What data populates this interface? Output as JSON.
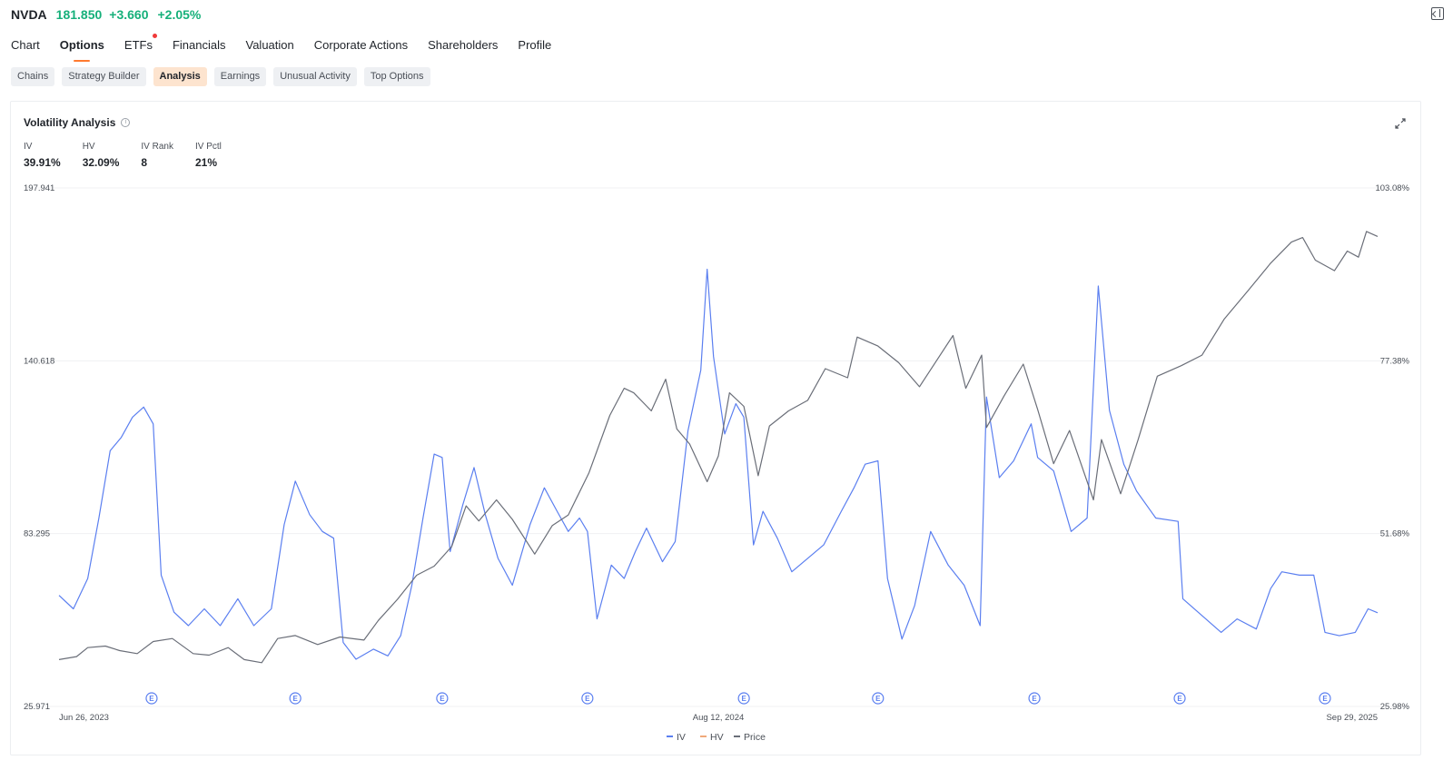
{
  "ticker": {
    "symbol": "NVDA",
    "price": "181.850",
    "change": "+3.660",
    "change_pct": "+2.05%",
    "up_color": "#16b07a"
  },
  "main_tabs": [
    {
      "label": "Chart",
      "active": false,
      "has_dot": false
    },
    {
      "label": "Options",
      "active": true,
      "has_dot": false
    },
    {
      "label": "ETFs",
      "active": false,
      "has_dot": true
    },
    {
      "label": "Financials",
      "active": false,
      "has_dot": false
    },
    {
      "label": "Valuation",
      "active": false,
      "has_dot": false
    },
    {
      "label": "Corporate Actions",
      "active": false,
      "has_dot": false
    },
    {
      "label": "Shareholders",
      "active": false,
      "has_dot": false
    },
    {
      "label": "Profile",
      "active": false,
      "has_dot": false
    }
  ],
  "sub_tabs": [
    {
      "label": "Chains",
      "active": false
    },
    {
      "label": "Strategy Builder",
      "active": false
    },
    {
      "label": "Analysis",
      "active": true
    },
    {
      "label": "Earnings",
      "active": false
    },
    {
      "label": "Unusual Activity",
      "active": false
    },
    {
      "label": "Top Options",
      "active": false
    }
  ],
  "panel": {
    "title": "Volatility Analysis",
    "metrics": [
      {
        "label": "IV",
        "value": "39.91%"
      },
      {
        "label": "HV",
        "value": "32.09%"
      },
      {
        "label": "IV Rank",
        "value": "8"
      },
      {
        "label": "IV Pctl",
        "value": "21%"
      }
    ]
  },
  "chart_data": {
    "type": "line",
    "x_tick_labels": [
      "Jun 26, 2023",
      "Aug 12, 2024",
      "Sep 29, 2025"
    ],
    "x_range": [
      "2023-06-26",
      "2025-09-29"
    ],
    "left_axis": {
      "ticks": [
        "197.941",
        "140.618",
        "83.295",
        "25.971"
      ],
      "range": [
        25.971,
        197.941
      ],
      "series": "Price"
    },
    "right_axis": {
      "ticks": [
        "103.08%",
        "77.38%",
        "51.68%",
        "25.98%"
      ],
      "range": [
        25.98,
        103.08
      ],
      "unit": "%",
      "series": "IV/HV"
    },
    "grid": true,
    "legend_position": "bottom-center",
    "earnings_marker_label": "E",
    "earnings_markers": [
      "2023-08-23",
      "2023-11-21",
      "2024-02-21",
      "2024-05-22",
      "2024-08-28",
      "2024-11-20",
      "2025-02-26",
      "2025-05-28",
      "2025-08-27"
    ],
    "series": [
      {
        "name": "IV",
        "color": "#5b7ff0",
        "visible": true,
        "points": [
          [
            "2023-06-26",
            42.5
          ],
          [
            "2023-07-05",
            40.5
          ],
          [
            "2023-07-14",
            45.0
          ],
          [
            "2023-07-21",
            54.0
          ],
          [
            "2023-07-28",
            64.0
          ],
          [
            "2023-08-04",
            66.0
          ],
          [
            "2023-08-11",
            69.0
          ],
          [
            "2023-08-18",
            70.5
          ],
          [
            "2023-08-24",
            68.0
          ],
          [
            "2023-08-29",
            45.5
          ],
          [
            "2023-09-06",
            40.0
          ],
          [
            "2023-09-15",
            38.0
          ],
          [
            "2023-09-25",
            40.5
          ],
          [
            "2023-10-05",
            38.0
          ],
          [
            "2023-10-16",
            42.0
          ],
          [
            "2023-10-26",
            38.0
          ],
          [
            "2023-11-06",
            40.5
          ],
          [
            "2023-11-14",
            53.0
          ],
          [
            "2023-11-21",
            59.5
          ],
          [
            "2023-11-30",
            54.5
          ],
          [
            "2023-12-08",
            52.0
          ],
          [
            "2023-12-15",
            51.0
          ],
          [
            "2023-12-21",
            35.5
          ],
          [
            "2023-12-29",
            33.0
          ],
          [
            "2024-01-09",
            34.5
          ],
          [
            "2024-01-18",
            33.5
          ],
          [
            "2024-01-26",
            36.5
          ],
          [
            "2024-02-02",
            44.0
          ],
          [
            "2024-02-09",
            54.0
          ],
          [
            "2024-02-16",
            63.5
          ],
          [
            "2024-02-21",
            63.0
          ],
          [
            "2024-02-26",
            49.0
          ],
          [
            "2024-03-05",
            56.0
          ],
          [
            "2024-03-12",
            61.5
          ],
          [
            "2024-03-19",
            54.5
          ],
          [
            "2024-03-27",
            48.0
          ],
          [
            "2024-04-05",
            44.0
          ],
          [
            "2024-04-16",
            53.0
          ],
          [
            "2024-04-25",
            58.5
          ],
          [
            "2024-05-03",
            55.0
          ],
          [
            "2024-05-10",
            52.0
          ],
          [
            "2024-05-17",
            54.0
          ],
          [
            "2024-05-22",
            52.0
          ],
          [
            "2024-05-28",
            39.0
          ],
          [
            "2024-06-06",
            47.0
          ],
          [
            "2024-06-14",
            45.0
          ],
          [
            "2024-06-21",
            49.0
          ],
          [
            "2024-06-28",
            52.5
          ],
          [
            "2024-07-08",
            47.5
          ],
          [
            "2024-07-16",
            50.5
          ],
          [
            "2024-07-24",
            67.0
          ],
          [
            "2024-08-01",
            76.0
          ],
          [
            "2024-08-05",
            91.0
          ],
          [
            "2024-08-09",
            78.0
          ],
          [
            "2024-08-16",
            66.5
          ],
          [
            "2024-08-23",
            71.0
          ],
          [
            "2024-08-28",
            69.0
          ],
          [
            "2024-09-03",
            50.0
          ],
          [
            "2024-09-09",
            55.0
          ],
          [
            "2024-09-18",
            51.0
          ],
          [
            "2024-09-27",
            46.0
          ],
          [
            "2024-10-07",
            48.0
          ],
          [
            "2024-10-17",
            50.0
          ],
          [
            "2024-10-28",
            55.0
          ],
          [
            "2024-11-05",
            58.5
          ],
          [
            "2024-11-12",
            62.0
          ],
          [
            "2024-11-20",
            62.5
          ],
          [
            "2024-11-26",
            45.0
          ],
          [
            "2024-12-05",
            36.0
          ],
          [
            "2024-12-13",
            41.0
          ],
          [
            "2024-12-23",
            52.0
          ],
          [
            "2025-01-03",
            47.0
          ],
          [
            "2025-01-13",
            44.0
          ],
          [
            "2025-01-23",
            38.0
          ],
          [
            "2025-01-27",
            72.0
          ],
          [
            "2025-02-04",
            60.0
          ],
          [
            "2025-02-13",
            62.5
          ],
          [
            "2025-02-24",
            68.0
          ],
          [
            "2025-02-28",
            63.0
          ],
          [
            "2025-03-10",
            61.0
          ],
          [
            "2025-03-21",
            52.0
          ],
          [
            "2025-03-31",
            54.0
          ],
          [
            "2025-04-07",
            88.5
          ],
          [
            "2025-04-14",
            70.0
          ],
          [
            "2025-04-23",
            62.0
          ],
          [
            "2025-05-01",
            58.0
          ],
          [
            "2025-05-13",
            54.0
          ],
          [
            "2025-05-27",
            53.5
          ],
          [
            "2025-05-30",
            42.0
          ],
          [
            "2025-06-11",
            39.5
          ],
          [
            "2025-06-23",
            37.0
          ],
          [
            "2025-07-03",
            39.0
          ],
          [
            "2025-07-15",
            37.5
          ],
          [
            "2025-07-24",
            43.5
          ],
          [
            "2025-07-31",
            46.0
          ],
          [
            "2025-08-11",
            45.5
          ],
          [
            "2025-08-20",
            45.5
          ],
          [
            "2025-08-27",
            37.0
          ],
          [
            "2025-09-05",
            36.5
          ],
          [
            "2025-09-15",
            37.0
          ],
          [
            "2025-09-23",
            40.5
          ],
          [
            "2025-09-29",
            39.91
          ]
        ]
      },
      {
        "name": "HV",
        "color": "#f0a97a",
        "visible": false,
        "points": []
      },
      {
        "name": "Price",
        "color": "#6a6e78",
        "visible": true,
        "points": [
          [
            "2023-06-26",
            41.5
          ],
          [
            "2023-07-07",
            42.5
          ],
          [
            "2023-07-14",
            45.5
          ],
          [
            "2023-07-25",
            46.0
          ],
          [
            "2023-08-03",
            44.5
          ],
          [
            "2023-08-14",
            43.5
          ],
          [
            "2023-08-24",
            47.5
          ],
          [
            "2023-09-05",
            48.5
          ],
          [
            "2023-09-18",
            43.5
          ],
          [
            "2023-09-28",
            43.0
          ],
          [
            "2023-10-10",
            45.5
          ],
          [
            "2023-10-20",
            41.5
          ],
          [
            "2023-10-31",
            40.5
          ],
          [
            "2023-11-10",
            48.5
          ],
          [
            "2023-11-21",
            49.5
          ],
          [
            "2023-12-05",
            46.5
          ],
          [
            "2023-12-19",
            49.0
          ],
          [
            "2024-01-03",
            48.0
          ],
          [
            "2024-01-12",
            54.5
          ],
          [
            "2024-01-24",
            61.5
          ],
          [
            "2024-02-05",
            69.5
          ],
          [
            "2024-02-16",
            72.5
          ],
          [
            "2024-02-27",
            79.0
          ],
          [
            "2024-03-07",
            92.5
          ],
          [
            "2024-03-15",
            87.5
          ],
          [
            "2024-03-26",
            94.5
          ],
          [
            "2024-04-05",
            88.0
          ],
          [
            "2024-04-19",
            76.5
          ],
          [
            "2024-04-30",
            86.0
          ],
          [
            "2024-05-10",
            89.5
          ],
          [
            "2024-05-23",
            103.5
          ],
          [
            "2024-06-05",
            122.5
          ],
          [
            "2024-06-14",
            131.5
          ],
          [
            "2024-06-20",
            130.0
          ],
          [
            "2024-07-01",
            124.0
          ],
          [
            "2024-07-10",
            134.5
          ],
          [
            "2024-07-17",
            118.0
          ],
          [
            "2024-07-25",
            113.0
          ],
          [
            "2024-08-05",
            100.5
          ],
          [
            "2024-08-12",
            109.0
          ],
          [
            "2024-08-19",
            130.0
          ],
          [
            "2024-08-28",
            125.5
          ],
          [
            "2024-09-06",
            102.5
          ],
          [
            "2024-09-13",
            119.0
          ],
          [
            "2024-09-25",
            124.0
          ],
          [
            "2024-10-07",
            127.5
          ],
          [
            "2024-10-18",
            138.0
          ],
          [
            "2024-11-01",
            135.0
          ],
          [
            "2024-11-07",
            148.5
          ],
          [
            "2024-11-20",
            145.5
          ],
          [
            "2024-12-03",
            140.0
          ],
          [
            "2024-12-16",
            132.0
          ],
          [
            "2025-01-06",
            149.0
          ],
          [
            "2025-01-14",
            131.5
          ],
          [
            "2025-01-24",
            142.5
          ],
          [
            "2025-01-27",
            118.5
          ],
          [
            "2025-02-07",
            129.0
          ],
          [
            "2025-02-19",
            139.5
          ],
          [
            "2025-02-28",
            124.5
          ],
          [
            "2025-03-10",
            106.5
          ],
          [
            "2025-03-20",
            117.5
          ],
          [
            "2025-04-04",
            94.5
          ],
          [
            "2025-04-09",
            114.5
          ],
          [
            "2025-04-21",
            96.5
          ],
          [
            "2025-05-02",
            114.5
          ],
          [
            "2025-05-14",
            135.5
          ],
          [
            "2025-05-29",
            139.0
          ],
          [
            "2025-06-11",
            142.5
          ],
          [
            "2025-06-25",
            154.5
          ],
          [
            "2025-07-10",
            164.0
          ],
          [
            "2025-07-24",
            173.0
          ],
          [
            "2025-08-06",
            180.0
          ],
          [
            "2025-08-13",
            181.5
          ],
          [
            "2025-08-21",
            174.0
          ],
          [
            "2025-09-02",
            170.5
          ],
          [
            "2025-09-10",
            177.0
          ],
          [
            "2025-09-17",
            175.0
          ],
          [
            "2025-09-22",
            183.5
          ],
          [
            "2025-09-29",
            181.85
          ]
        ]
      }
    ]
  }
}
